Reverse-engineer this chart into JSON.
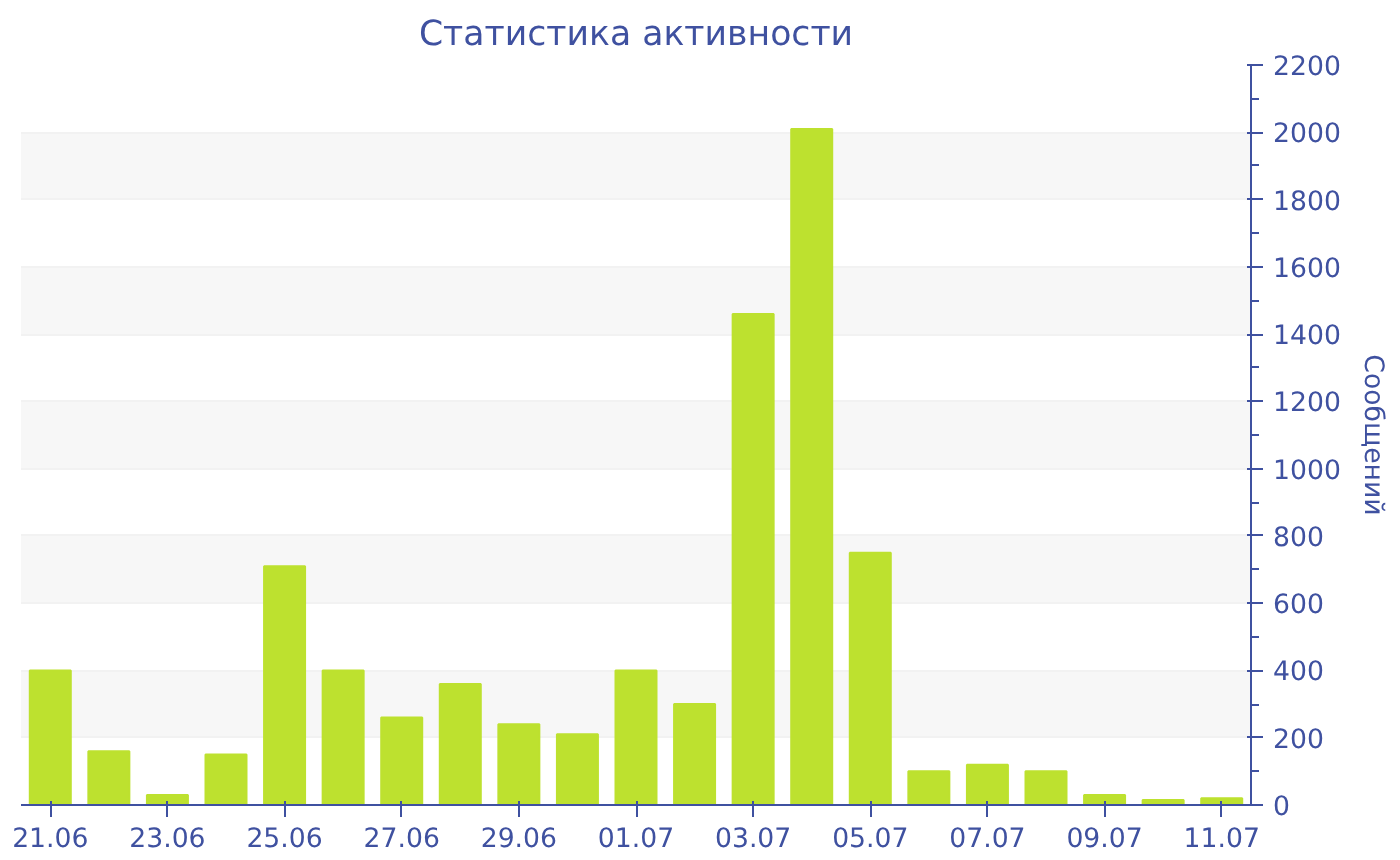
{
  "chart_data": {
    "type": "bar",
    "title": "Статистика активности",
    "ylabel": "Сообщений",
    "categories": [
      "21.06",
      null,
      "23.06",
      null,
      "25.06",
      null,
      "27.06",
      null,
      "29.06",
      null,
      "01.07",
      null,
      "03.07",
      null,
      "05.07",
      null,
      "07.07",
      null,
      "09.07",
      null,
      "11.07"
    ],
    "values": [
      400,
      160,
      30,
      150,
      710,
      400,
      260,
      360,
      240,
      210,
      400,
      300,
      1460,
      2010,
      750,
      100,
      120,
      100,
      30,
      15,
      20
    ],
    "color": "#bde12f",
    "ylim": [
      0,
      2200
    ],
    "yticks": [
      0,
      200,
      400,
      600,
      800,
      1000,
      1200,
      1400,
      1600,
      1800,
      2000,
      2200
    ],
    "grid": "y"
  }
}
